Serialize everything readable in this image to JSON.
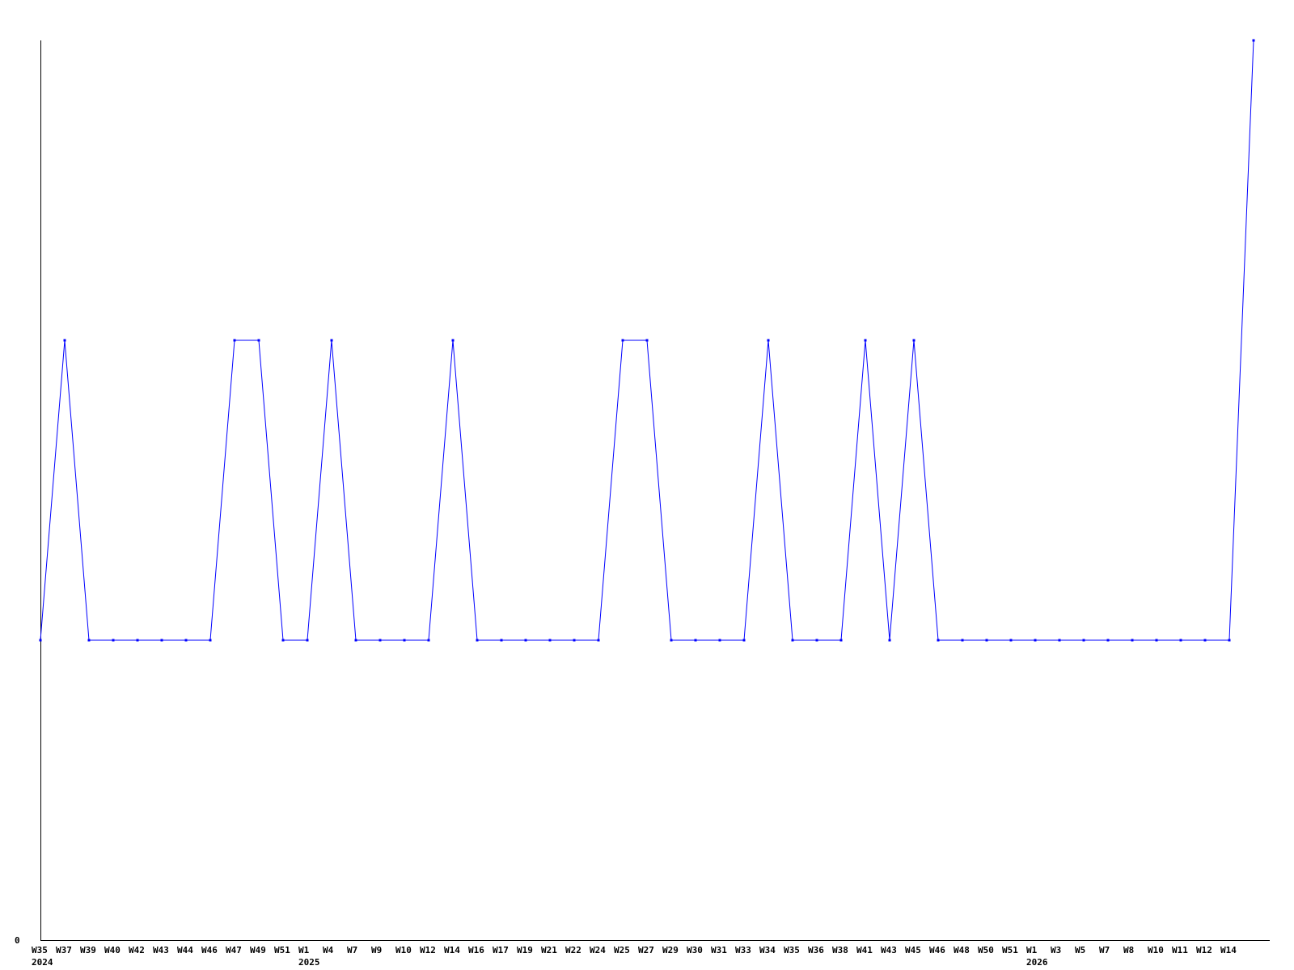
{
  "chart_data": {
    "type": "line",
    "title": "",
    "xlabel": "",
    "ylabel": "",
    "ylim": [
      0,
      3
    ],
    "yticks": [
      "0"
    ],
    "grid": false,
    "line_color": "#0000ff",
    "axis_color": "#000000",
    "categories": [
      "W35",
      "W37",
      "W39",
      "W40",
      "W42",
      "W43",
      "W44",
      "W46",
      "W47",
      "W49",
      "W51",
      "W1",
      "W4",
      "W7",
      "W9",
      "W10",
      "W12",
      "W14",
      "W16",
      "W17",
      "W19",
      "W21",
      "W22",
      "W24",
      "W25",
      "W27",
      "W29",
      "W30",
      "W31",
      "W33",
      "W34",
      "W35",
      "W36",
      "W38",
      "W41",
      "W43",
      "W45",
      "W46",
      "W48",
      "W50",
      "W51",
      "W1",
      "W3",
      "W5",
      "W7",
      "W8",
      "W10",
      "W11",
      "W12",
      "W14",
      ""
    ],
    "year_labels": [
      {
        "index": 0,
        "label": "2024"
      },
      {
        "index": 11,
        "label": "2025"
      },
      {
        "index": 41,
        "label": "2026"
      }
    ],
    "values": [
      1,
      2,
      1,
      1,
      1,
      1,
      1,
      1,
      2,
      2,
      1,
      1,
      2,
      1,
      1,
      1,
      1,
      2,
      1,
      1,
      1,
      1,
      1,
      1,
      2,
      2,
      1,
      1,
      1,
      1,
      2,
      1,
      1,
      1,
      2,
      1,
      2,
      1,
      1,
      1,
      1,
      1,
      1,
      1,
      1,
      1,
      1,
      1,
      1,
      1,
      3
    ]
  }
}
